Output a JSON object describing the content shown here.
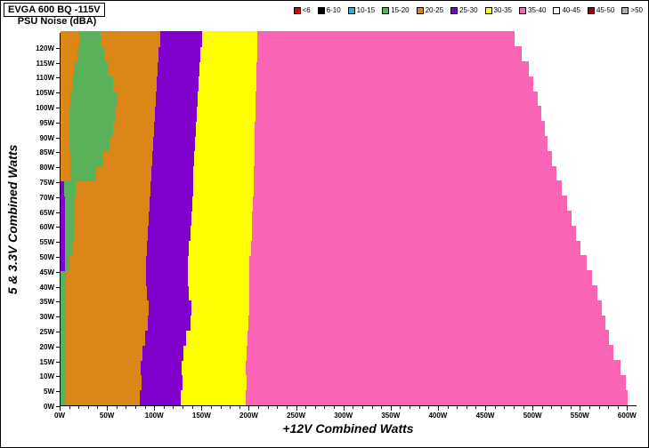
{
  "header": {
    "title": "EVGA 600 BQ -115V",
    "subtitle": "PSU Noise (dBA)"
  },
  "chart_data": {
    "type": "heatmap",
    "title": "EVGA 600 BQ -115V PSU Noise (dBA)",
    "xlabel": "+12V Combined Watts",
    "ylabel": "5 & 3.3V Combined Watts",
    "x_range_watts": [
      0,
      610
    ],
    "y_range_watts": [
      0,
      125
    ],
    "row_height_watts": 5,
    "grid": false,
    "legend_position": "top-right",
    "x_ticks": [
      "0W",
      "50W",
      "100W",
      "150W",
      "200W",
      "250W",
      "300W",
      "350W",
      "400W",
      "450W",
      "500W",
      "550W",
      "600W"
    ],
    "y_ticks": [
      "0W",
      "5W",
      "10W",
      "15W",
      "20W",
      "25W",
      "30W",
      "35W",
      "40W",
      "45W",
      "50W",
      "55W",
      "60W",
      "65W",
      "70W",
      "75W",
      "80W",
      "85W",
      "90W",
      "95W",
      "100W",
      "105W",
      "110W",
      "115W",
      "120W"
    ],
    "legend": [
      {
        "label": "<6",
        "color": "#e00000"
      },
      {
        "label": "6-10",
        "color": "#000000"
      },
      {
        "label": "10-15",
        "color": "#2ab5c9"
      },
      {
        "label": "15-20",
        "color": "#59b259"
      },
      {
        "label": "20-25",
        "color": "#dd8618"
      },
      {
        "label": "25-30",
        "color": "#8000cc"
      },
      {
        "label": "30-35",
        "color": "#ffff00"
      },
      {
        "label": "35-40",
        "color": "#fb64b4"
      },
      {
        "label": "40-45",
        "color": "#ffffff"
      },
      {
        "label": "45-50",
        "color": "#a00000"
      },
      {
        "label": ">50",
        "color": "#b0b0b0"
      }
    ],
    "rows": [
      {
        "y": 0,
        "segments": [
          [
            "15-20",
            0,
            5
          ],
          [
            "20-25",
            5,
            84
          ],
          [
            "25-30",
            84,
            127
          ],
          [
            "30-35",
            127,
            196
          ],
          [
            "35-40",
            196,
            600
          ]
        ]
      },
      {
        "y": 5,
        "segments": [
          [
            "15-20",
            0,
            5
          ],
          [
            "20-25",
            5,
            86
          ],
          [
            "25-30",
            86,
            129
          ],
          [
            "30-35",
            129,
            197
          ],
          [
            "35-40",
            197,
            598
          ]
        ]
      },
      {
        "y": 10,
        "segments": [
          [
            "15-20",
            0,
            5
          ],
          [
            "20-25",
            5,
            85
          ],
          [
            "25-30",
            85,
            128
          ],
          [
            "30-35",
            128,
            196
          ],
          [
            "35-40",
            196,
            592
          ]
        ]
      },
      {
        "y": 15,
        "segments": [
          [
            "15-20",
            0,
            5
          ],
          [
            "20-25",
            5,
            87
          ],
          [
            "25-30",
            87,
            130
          ],
          [
            "30-35",
            130,
            197
          ],
          [
            "35-40",
            197,
            585
          ]
        ]
      },
      {
        "y": 20,
        "segments": [
          [
            "15-20",
            0,
            6
          ],
          [
            "20-25",
            6,
            89
          ],
          [
            "25-30",
            89,
            133
          ],
          [
            "30-35",
            133,
            198
          ],
          [
            "35-40",
            198,
            580
          ]
        ]
      },
      {
        "y": 25,
        "segments": [
          [
            "15-20",
            0,
            6
          ],
          [
            "20-25",
            6,
            92
          ],
          [
            "25-30",
            92,
            137
          ],
          [
            "30-35",
            137,
            199
          ],
          [
            "35-40",
            199,
            576
          ]
        ]
      },
      {
        "y": 30,
        "segments": [
          [
            "15-20",
            0,
            6
          ],
          [
            "20-25",
            6,
            93
          ],
          [
            "25-30",
            93,
            138
          ],
          [
            "30-35",
            138,
            200
          ],
          [
            "35-40",
            200,
            572
          ]
        ]
      },
      {
        "y": 35,
        "segments": [
          [
            "15-20",
            0,
            6
          ],
          [
            "20-25",
            6,
            91
          ],
          [
            "25-30",
            91,
            136
          ],
          [
            "30-35",
            136,
            200
          ],
          [
            "35-40",
            200,
            568
          ]
        ]
      },
      {
        "y": 40,
        "segments": [
          [
            "15-20",
            0,
            6
          ],
          [
            "20-25",
            6,
            90
          ],
          [
            "25-30",
            90,
            135
          ],
          [
            "30-35",
            135,
            200
          ],
          [
            "35-40",
            200,
            562
          ]
        ]
      },
      {
        "y": 45,
        "segments": [
          [
            "25-30",
            0,
            5
          ],
          [
            "15-20",
            5,
            9
          ],
          [
            "20-25",
            9,
            90
          ],
          [
            "25-30",
            90,
            135
          ],
          [
            "30-35",
            135,
            200
          ],
          [
            "35-40",
            200,
            556
          ]
        ]
      },
      {
        "y": 50,
        "segments": [
          [
            "25-30",
            0,
            5
          ],
          [
            "15-20",
            5,
            12
          ],
          [
            "20-25",
            12,
            91
          ],
          [
            "25-30",
            91,
            136
          ],
          [
            "30-35",
            136,
            201
          ],
          [
            "35-40",
            201,
            550
          ]
        ]
      },
      {
        "y": 55,
        "segments": [
          [
            "25-30",
            0,
            5
          ],
          [
            "15-20",
            5,
            14
          ],
          [
            "20-25",
            14,
            92
          ],
          [
            "25-30",
            92,
            137
          ],
          [
            "30-35",
            137,
            202
          ],
          [
            "35-40",
            202,
            545
          ]
        ]
      },
      {
        "y": 60,
        "segments": [
          [
            "25-30",
            0,
            5
          ],
          [
            "15-20",
            5,
            15
          ],
          [
            "20-25",
            15,
            93
          ],
          [
            "25-30",
            93,
            138
          ],
          [
            "30-35",
            138,
            202
          ],
          [
            "35-40",
            202,
            540
          ]
        ]
      },
      {
        "y": 65,
        "segments": [
          [
            "25-30",
            0,
            5
          ],
          [
            "15-20",
            5,
            15
          ],
          [
            "20-25",
            15,
            94
          ],
          [
            "25-30",
            94,
            139
          ],
          [
            "30-35",
            139,
            203
          ],
          [
            "35-40",
            203,
            536
          ]
        ]
      },
      {
        "y": 70,
        "segments": [
          [
            "25-30",
            0,
            4
          ],
          [
            "15-20",
            4,
            16
          ],
          [
            "20-25",
            16,
            95
          ],
          [
            "25-30",
            95,
            140
          ],
          [
            "30-35",
            140,
            204
          ],
          [
            "35-40",
            204,
            530
          ]
        ]
      },
      {
        "y": 75,
        "segments": [
          [
            "20-25",
            0,
            10
          ],
          [
            "15-20",
            10,
            38
          ],
          [
            "20-25",
            38,
            96
          ],
          [
            "25-30",
            96,
            140
          ],
          [
            "30-35",
            140,
            204
          ],
          [
            "35-40",
            204,
            524
          ]
        ]
      },
      {
        "y": 80,
        "segments": [
          [
            "20-25",
            0,
            10
          ],
          [
            "15-20",
            10,
            45
          ],
          [
            "20-25",
            45,
            97
          ],
          [
            "25-30",
            97,
            141
          ],
          [
            "30-35",
            141,
            205
          ],
          [
            "35-40",
            205,
            520
          ]
        ]
      },
      {
        "y": 85,
        "segments": [
          [
            "20-25",
            0,
            9
          ],
          [
            "15-20",
            9,
            52
          ],
          [
            "20-25",
            52,
            98
          ],
          [
            "25-30",
            98,
            142
          ],
          [
            "30-35",
            142,
            205
          ],
          [
            "35-40",
            205,
            515
          ]
        ]
      },
      {
        "y": 90,
        "segments": [
          [
            "20-25",
            0,
            9
          ],
          [
            "15-20",
            9,
            56
          ],
          [
            "20-25",
            56,
            99
          ],
          [
            "25-30",
            99,
            143
          ],
          [
            "30-35",
            143,
            205
          ],
          [
            "35-40",
            205,
            512
          ]
        ]
      },
      {
        "y": 95,
        "segments": [
          [
            "20-25",
            0,
            9
          ],
          [
            "15-20",
            9,
            58
          ],
          [
            "20-25",
            58,
            100
          ],
          [
            "25-30",
            100,
            144
          ],
          [
            "30-35",
            144,
            206
          ],
          [
            "35-40",
            206,
            508
          ]
        ]
      },
      {
        "y": 100,
        "segments": [
          [
            "20-25",
            0,
            10
          ],
          [
            "15-20",
            10,
            60
          ],
          [
            "20-25",
            60,
            101
          ],
          [
            "25-30",
            101,
            145
          ],
          [
            "30-35",
            145,
            206
          ],
          [
            "35-40",
            206,
            505
          ]
        ]
      },
      {
        "y": 105,
        "segments": [
          [
            "20-25",
            0,
            12
          ],
          [
            "15-20",
            12,
            56
          ],
          [
            "20-25",
            56,
            102
          ],
          [
            "25-30",
            102,
            146
          ],
          [
            "30-35",
            146,
            207
          ],
          [
            "35-40",
            207,
            500
          ]
        ]
      },
      {
        "y": 110,
        "segments": [
          [
            "20-25",
            0,
            14
          ],
          [
            "15-20",
            14,
            50
          ],
          [
            "20-25",
            50,
            103
          ],
          [
            "25-30",
            103,
            147
          ],
          [
            "30-35",
            147,
            207
          ],
          [
            "35-40",
            207,
            495
          ]
        ]
      },
      {
        "y": 115,
        "segments": [
          [
            "20-25",
            0,
            18
          ],
          [
            "15-20",
            18,
            46
          ],
          [
            "20-25",
            46,
            104
          ],
          [
            "25-30",
            104,
            148
          ],
          [
            "30-35",
            148,
            208
          ],
          [
            "35-40",
            208,
            488
          ]
        ]
      },
      {
        "y": 120,
        "segments": [
          [
            "20-25",
            0,
            20
          ],
          [
            "15-20",
            20,
            42
          ],
          [
            "20-25",
            42,
            105
          ],
          [
            "25-30",
            105,
            150
          ],
          [
            "30-35",
            150,
            208
          ],
          [
            "35-40",
            208,
            480
          ]
        ]
      }
    ]
  }
}
